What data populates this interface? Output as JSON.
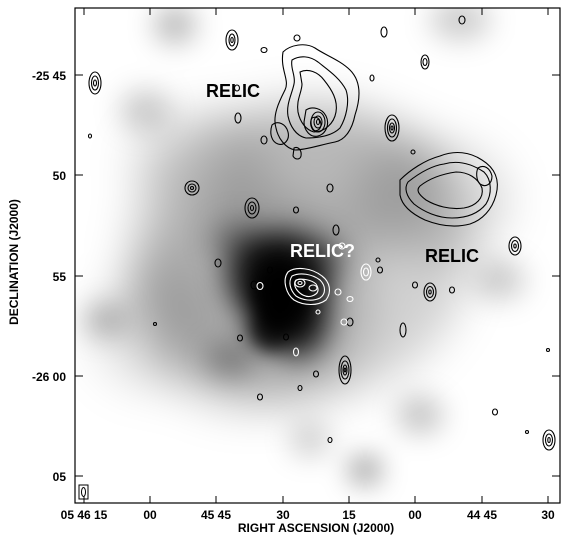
{
  "figure": {
    "x_axis_title": "RIGHT ASCENSION (J2000)",
    "y_axis_title": "DECLINATION (J2000)",
    "x_tick_labels": [
      "05 46 15",
      "00",
      "45 45",
      "30",
      "15",
      "00",
      "44 45",
      "30"
    ],
    "y_tick_labels": [
      "-25 45",
      "50",
      "55",
      "-26 00",
      "05"
    ],
    "annotations": {
      "relic_north": "RELIC",
      "relic_center": "RELIC?",
      "relic_east": "RELIC"
    },
    "colors": {
      "contour_dark": "#000000",
      "contour_light": "#ffffff",
      "emission": "#000000",
      "background": "#ffffff"
    }
  }
}
